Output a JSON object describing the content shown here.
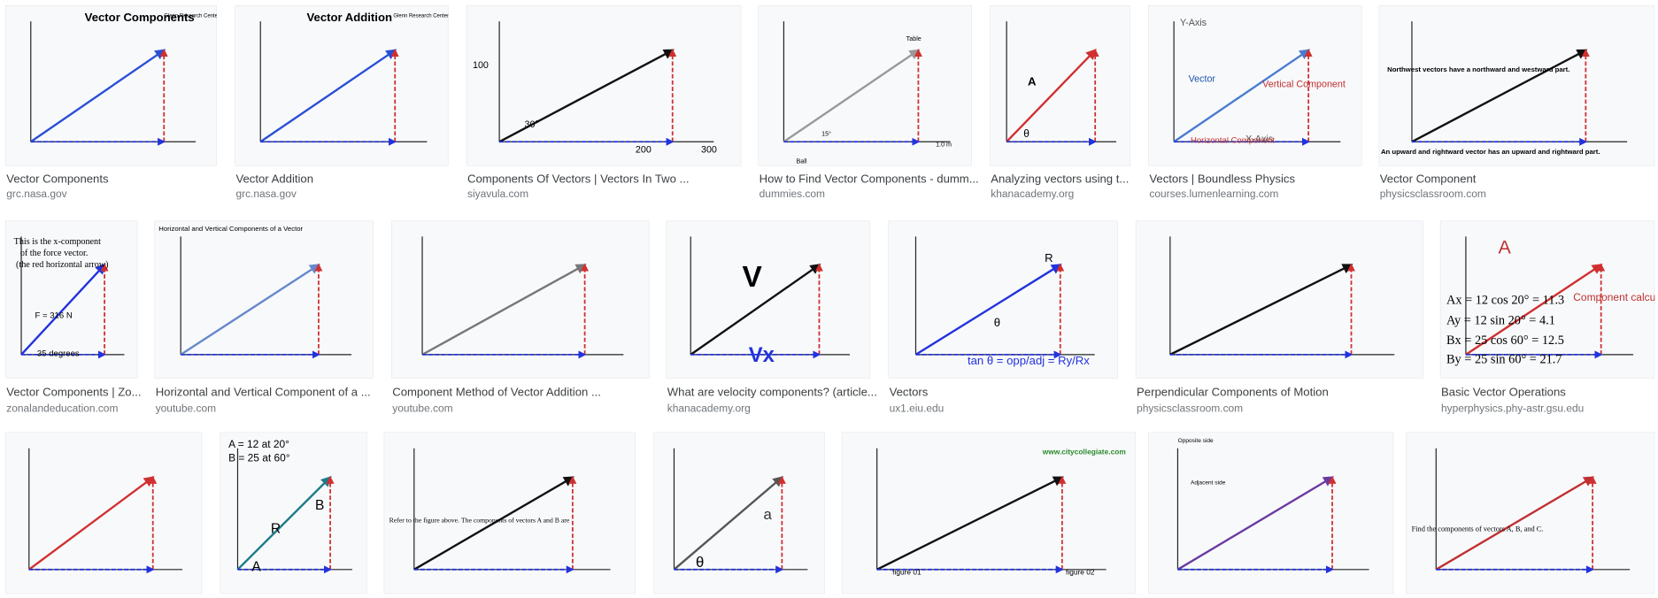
{
  "results": [
    {
      "title": "Vector Components",
      "source": "grc.nasa.gov",
      "labels": [
        "Vector Components",
        "Glenn Research Center"
      ]
    },
    {
      "title": "Vector Addition",
      "source": "grc.nasa.gov",
      "labels": [
        "Vector Addition",
        "Glenn Research Center"
      ]
    },
    {
      "title": "Components Of Vectors | Vectors In Two ...",
      "source": "siyavula.com",
      "labels": [
        "100",
        "200",
        "300",
        "30°"
      ]
    },
    {
      "title": "How to Find Vector Components - dumm...",
      "source": "dummies.com",
      "labels": [
        "Table",
        "Ball",
        "15°",
        "1.0 m"
      ]
    },
    {
      "title": "Analyzing vectors using t...",
      "source": "khanacademy.org",
      "labels": [
        "A",
        "θ"
      ]
    },
    {
      "title": "Vectors | Boundless Physics",
      "source": "courses.lumenlearning.com",
      "labels": [
        "Y-Axis",
        "X-Axis",
        "Vector",
        "Vertical Component",
        "Horizontal Component"
      ]
    },
    {
      "title": "Vector Component",
      "source": "physicsclassroom.com",
      "labels": [
        "Northwest vectors have a northward and westward part.",
        "An upward and rightward vector has an upward and rightward part."
      ]
    },
    {
      "title": "Vector Components | Zo...",
      "source": "zonalandeducation.com",
      "labels": [
        "This is the x-component",
        "of the force vector.",
        "(the red horizontal arrow)",
        "F = 316 N",
        "35 degrees"
      ]
    },
    {
      "title": "Horizontal and Vertical Component of a ...",
      "source": "youtube.com",
      "labels": [
        "Horizontal and Vertical Components of a Vector"
      ]
    },
    {
      "title": "Component Method of Vector Addition ...",
      "source": "youtube.com",
      "labels": []
    },
    {
      "title": "What are velocity components? (article...",
      "source": "khanacademy.org",
      "labels": [
        "V",
        "Vx"
      ]
    },
    {
      "title": "Vectors",
      "source": "ux1.eiu.edu",
      "labels": [
        "R",
        "θ",
        "tan θ = opp/adj = Ry/Rx"
      ]
    },
    {
      "title": "Perpendicular Components of Motion",
      "source": "physicsclassroom.com",
      "labels": []
    },
    {
      "title": "Basic Vector Operations",
      "source": "hyperphysics.phy-astr.gsu.edu",
      "labels": [
        "A",
        "Component calculation",
        "Ax = 12 cos 20° = 11.3",
        "Ay = 12 sin 20° = 4.1",
        "Bx = 25 cos 60° = 12.5",
        "By = 25 sin 60° = 21.7"
      ]
    },
    {
      "labels": []
    },
    {
      "labels": [
        "A = 12 at 20°",
        "B = 25 at 60°",
        "R",
        "B",
        "A"
      ]
    },
    {
      "labels": [
        "Refer to the figure above. The components of vectors A and B are"
      ]
    },
    {
      "labels": [
        "a",
        "θ"
      ]
    },
    {
      "labels": [
        "www.citycollegiate.com",
        "figure 01",
        "figure 02"
      ]
    },
    {
      "labels": [
        "Opposite side",
        "Adjacent side"
      ]
    },
    {
      "labels": [
        "Find the components of vectors A, B, and C."
      ]
    }
  ]
}
